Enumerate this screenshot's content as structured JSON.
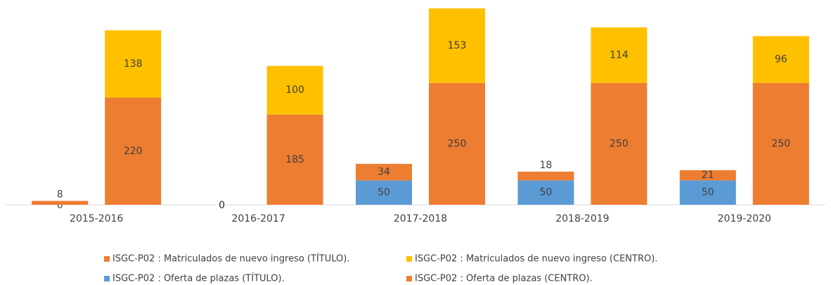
{
  "chart_data": {
    "type": "stacked_bar",
    "categories": [
      "2015-2016",
      "2016-2017",
      "2017-2018",
      "2018-2019",
      "2019-2020"
    ],
    "ylim": [
      0,
      410
    ],
    "series": [
      {
        "name": "ISGC-P02 : Oferta de plazas (TÍTULO).",
        "color": "#5b9bd5",
        "stack": "TÍTULO",
        "values": [
          0,
          0,
          50,
          50,
          50
        ]
      },
      {
        "name": "ISGC-P02 : Matriculados de nuevo ingreso (TÍTULO).",
        "color": "#ed7d31",
        "stack": "TÍTULO",
        "values": [
          8,
          0,
          34,
          18,
          21
        ]
      },
      {
        "name": "ISGC-P02 : Oferta de plazas (CENTRO).",
        "color": "#ed7d31",
        "stack": "CENTRO",
        "values": [
          220,
          185,
          250,
          250,
          250
        ]
      },
      {
        "name": "ISGC-P02 : Matriculados de nuevo ingreso (CENTRO).",
        "color": "#ffc000",
        "stack": "CENTRO",
        "values": [
          138,
          100,
          153,
          114,
          96
        ]
      }
    ]
  }
}
